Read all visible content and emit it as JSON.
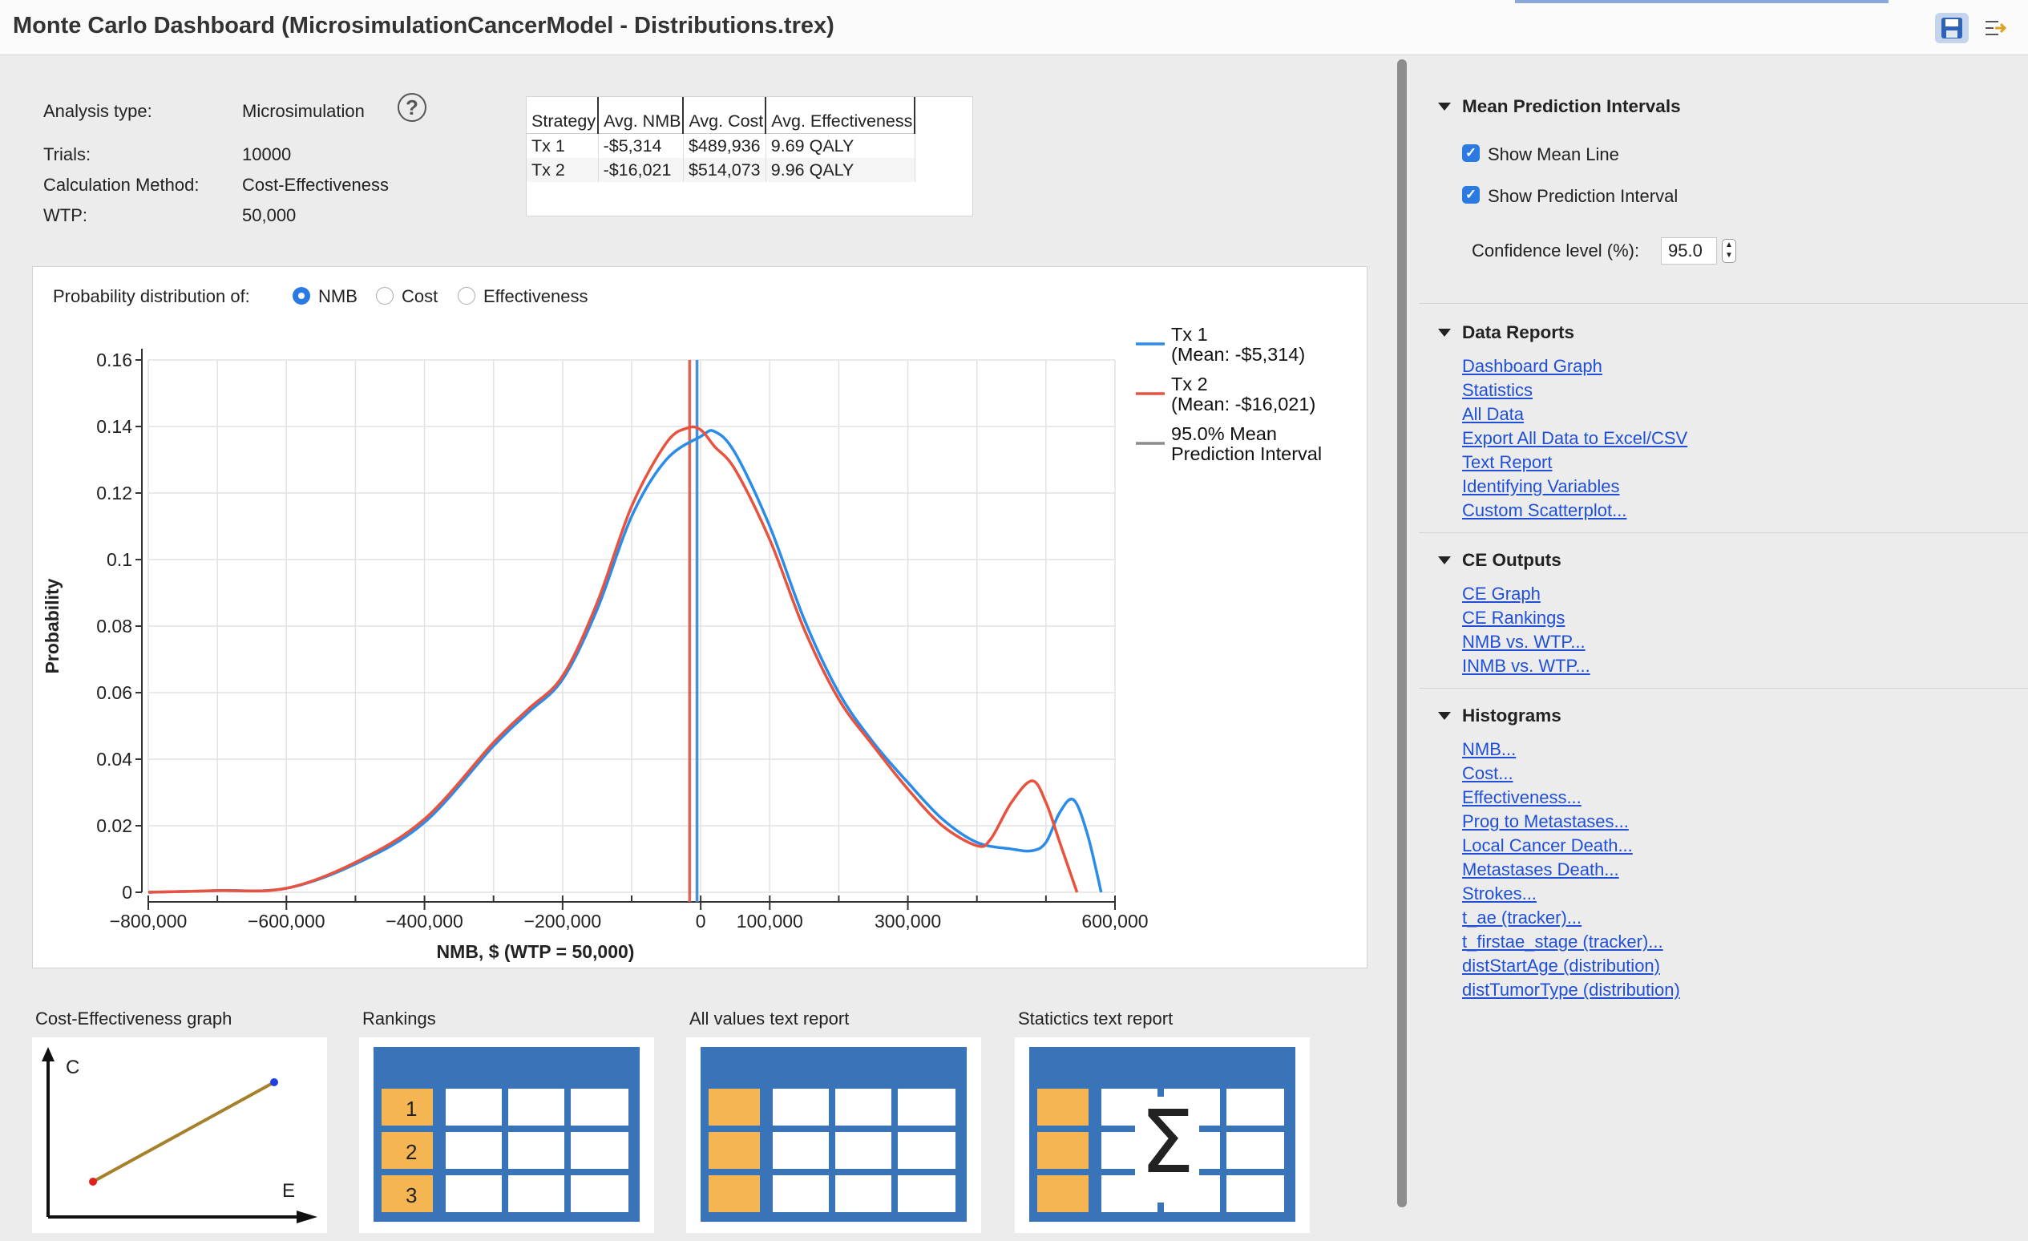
{
  "window": {
    "title": "Monte Carlo Dashboard (MicrosimulationCancerModel - Distributions.trex)"
  },
  "toolbar": {
    "save_icon": "save-icon",
    "export_icon": "export-arrow-icon",
    "minimize_icon": "minimize-icon"
  },
  "info": {
    "analysis_type_label": "Analysis type:",
    "analysis_type_value": "Microsimulation",
    "trials_label": "Trials:",
    "trials_value": "10000",
    "method_label": "Calculation Method:",
    "method_value": "Cost-Effectiveness",
    "wtp_label": "WTP:",
    "wtp_value": "50,000"
  },
  "summary_table": {
    "headers": [
      "Strategy",
      "Avg. NMB",
      "Avg. Cost",
      "Avg. Effectiveness"
    ],
    "rows": [
      [
        "Tx 1",
        "-$5,314",
        "$489,936",
        "9.69 QALY"
      ],
      [
        "Tx 2",
        "-$16,021",
        "$514,073",
        "9.96 QALY"
      ]
    ]
  },
  "distribution_selector": {
    "label": "Probability distribution of:",
    "options": [
      "NMB",
      "Cost",
      "Effectiveness"
    ],
    "selected": "NMB"
  },
  "chart_data": {
    "type": "line",
    "title": "",
    "xlabel": "NMB, $ (WTP = 50,000)",
    "ylabel": "Probability",
    "xlim": [
      -800000,
      600000
    ],
    "ylim": [
      0,
      0.16
    ],
    "x_ticks": [
      -800000,
      -600000,
      -400000,
      -200000,
      0,
      100000,
      300000,
      600000
    ],
    "x_tick_labels": [
      "−800,000",
      "−600,000",
      "−400,000",
      "−200,000",
      "0",
      "100,000",
      "300,000",
      "600,000"
    ],
    "y_ticks": [
      0,
      0.02,
      0.04,
      0.06,
      0.08,
      0.1,
      0.12,
      0.14,
      0.16
    ],
    "y_tick_labels": [
      "0",
      "0.02",
      "0.04",
      "0.06",
      "0.08",
      "0.1",
      "0.12",
      "0.14",
      "0.16"
    ],
    "grid": true,
    "legend_position": "right",
    "series": [
      {
        "name": "Tx 1\n(Mean: -$5,314)",
        "color": "#2a8ce8",
        "x": [
          -800000,
          -700000,
          -600000,
          -500000,
          -400000,
          -300000,
          -250000,
          -200000,
          -150000,
          -100000,
          -50000,
          0,
          20000,
          50000,
          100000,
          150000,
          200000,
          250000,
          300000,
          350000,
          400000,
          450000,
          480000,
          500000,
          520000,
          540000,
          560000,
          580000
        ],
        "values": [
          0,
          0.0005,
          0.0012,
          0.0085,
          0.021,
          0.044,
          0.054,
          0.064,
          0.085,
          0.113,
          0.13,
          0.137,
          0.1385,
          0.132,
          0.11,
          0.082,
          0.06,
          0.045,
          0.033,
          0.022,
          0.015,
          0.013,
          0.0125,
          0.015,
          0.024,
          0.0278,
          0.0175,
          0
        ]
      },
      {
        "name": "Tx 2\n(Mean: -$16,021)",
        "color": "#e8533f",
        "x": [
          -800000,
          -700000,
          -600000,
          -500000,
          -400000,
          -300000,
          -250000,
          -200000,
          -150000,
          -100000,
          -50000,
          -20000,
          0,
          20000,
          50000,
          100000,
          150000,
          200000,
          250000,
          300000,
          350000,
          400000,
          420000,
          450000,
          480000,
          500000,
          520000,
          545000
        ],
        "values": [
          0,
          0.0005,
          0.0012,
          0.009,
          0.022,
          0.045,
          0.055,
          0.065,
          0.087,
          0.116,
          0.135,
          0.1395,
          0.139,
          0.134,
          0.127,
          0.106,
          0.079,
          0.058,
          0.044,
          0.031,
          0.02,
          0.014,
          0.016,
          0.027,
          0.0335,
          0.027,
          0.015,
          0
        ]
      },
      {
        "name": "95.0% Mean\nPrediction Interval",
        "color": "#8c8c8c",
        "type": "vline",
        "x": [
          -16021,
          -5314
        ]
      }
    ]
  },
  "thumbnails": [
    {
      "label": "Cost-Effectiveness graph",
      "icon": "ce-graph-icon",
      "axis_c": "C",
      "axis_e": "E"
    },
    {
      "label": "Rankings",
      "icon": "rankings-table-icon",
      "numbers": [
        "1",
        "2",
        "3"
      ]
    },
    {
      "label": "All values text report",
      "icon": "all-values-table-icon"
    },
    {
      "label": "Statictics text report",
      "icon": "statistics-sigma-icon",
      "symbol": "Σ"
    }
  ],
  "right_panel": {
    "mean_prediction": {
      "title": "Mean Prediction Intervals",
      "show_mean_line": "Show Mean Line",
      "show_prediction_interval": "Show Prediction Interval",
      "confidence_label": "Confidence level (%):",
      "confidence_value": "95.0",
      "checked": true
    },
    "data_reports": {
      "title": "Data Reports",
      "links": [
        "Dashboard Graph",
        "Statistics",
        "All Data",
        "Export All Data to Excel/CSV",
        "Text Report",
        "Identifying Variables",
        "Custom Scatterplot..."
      ]
    },
    "ce_outputs": {
      "title": "CE Outputs",
      "links": [
        "CE Graph",
        "CE Rankings",
        "NMB vs. WTP...",
        "INMB vs. WTP..."
      ]
    },
    "histograms": {
      "title": "Histograms",
      "links": [
        "NMB...",
        "Cost...",
        "Effectiveness...",
        "Prog to Metastases...",
        "Local Cancer Death...",
        "Metastases Death...",
        "Strokes...",
        "t_ae (tracker)...",
        "t_firstae_stage (tracker)...",
        "distStartAge (distribution)",
        "distTumorType (distribution)"
      ]
    }
  },
  "colors": {
    "accent": "#2a7ae2",
    "link": "#1f4fd6",
    "tile_blue": "#3a74b8",
    "tile_orange": "#f4b552"
  }
}
